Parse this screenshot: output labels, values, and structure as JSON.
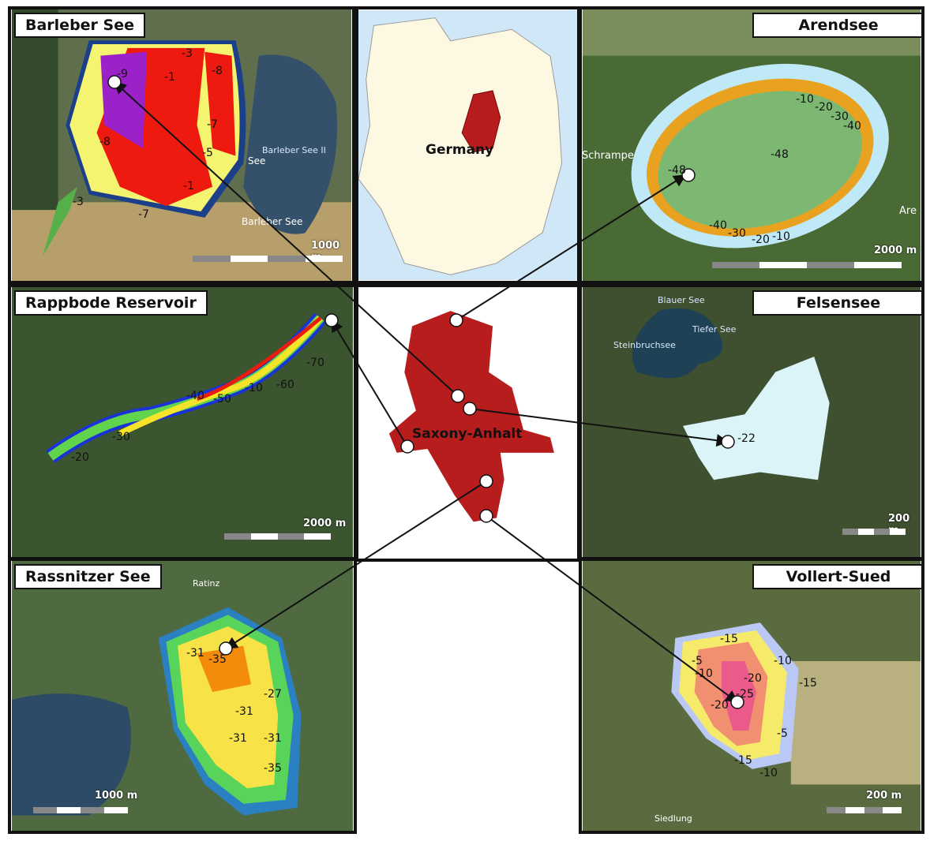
{
  "panels": {
    "barleber": {
      "title": "Barleber See",
      "scale": "1000 m",
      "labels": [
        "-9",
        "-3",
        "-1",
        "-8",
        "-7",
        "-5",
        "-8",
        "-1",
        "-7",
        "-3"
      ],
      "places": [
        "Barleber See II",
        "See",
        "Barleber See"
      ]
    },
    "arendsee": {
      "title": "Arendsee",
      "scale": "2000 m",
      "labels": [
        "-10",
        "-20",
        "-30",
        "-40",
        "-48",
        "-48",
        "-40",
        "-30",
        "-20",
        "-10"
      ],
      "places": [
        "Schrampe",
        "Are"
      ]
    },
    "rappbode": {
      "title": "Rappbode Reservoir",
      "scale": "2000 m",
      "labels": [
        "-70",
        "-60",
        "-10",
        "-50",
        "-40",
        "-30",
        "-20"
      ]
    },
    "felsensee": {
      "title": "Felsensee",
      "scale": "200 m",
      "labels": [
        "-22"
      ],
      "places": [
        "Blauer See",
        "Tiefer See",
        "Steinbruchsee"
      ]
    },
    "rassnitzer": {
      "title": "Rassnitzer See",
      "scale": "1000 m",
      "labels": [
        "-31",
        "-35",
        "-27",
        "-31",
        "-31",
        "-31",
        "-35"
      ],
      "places": [
        "Ratinz"
      ]
    },
    "vollert": {
      "title": "Vollert-Sued",
      "scale": "200 m",
      "labels": [
        "-5",
        "-15",
        "-10",
        "-10",
        "-15",
        "-20",
        "-25",
        "-20",
        "-5",
        "-15",
        "-10"
      ],
      "places": [
        "Siedlung"
      ]
    }
  },
  "germany": {
    "label": "Germany"
  },
  "state": {
    "label": "Saxony-Anhalt"
  },
  "colors": {
    "state_red": "#b81d1d",
    "germany_fill": "#fdf8e1"
  }
}
